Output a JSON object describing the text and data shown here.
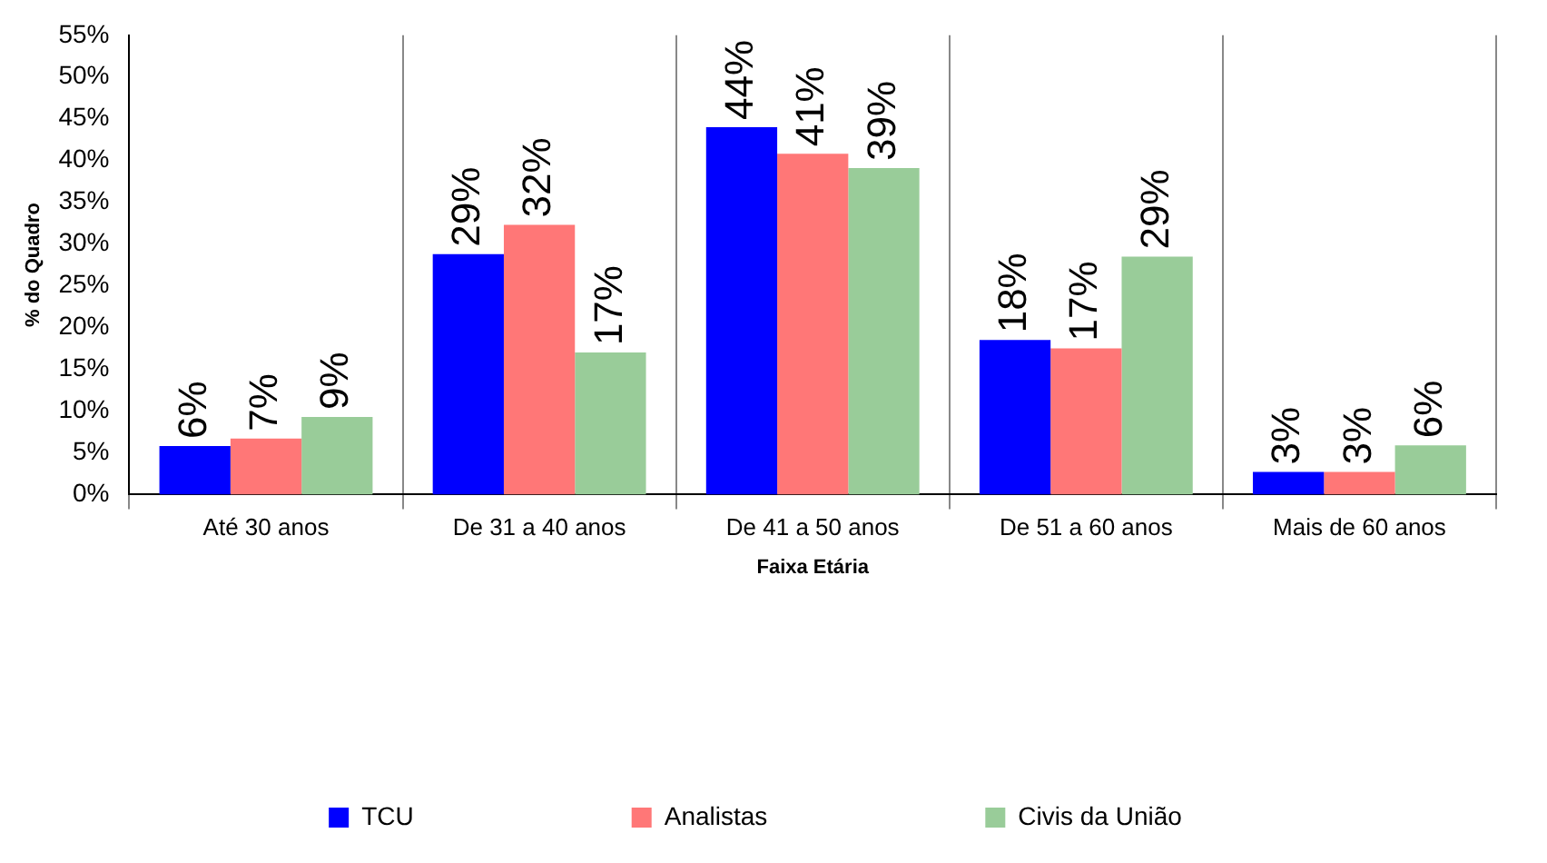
{
  "chart_data": {
    "type": "bar",
    "xlabel": "Faixa Etária",
    "ylabel": "% do Quadro",
    "categories": [
      "Até 30 anos",
      "De 31 a 40 anos",
      "De 41 a 50 anos",
      "De 51 a 60 anos",
      "Mais de 60 anos"
    ],
    "series": [
      {
        "name": "TCU",
        "color": "#0000ff",
        "values": [
          5.8,
          28.8,
          44.0,
          18.5,
          2.7
        ],
        "value_labels": [
          "6%",
          "29%",
          "44%",
          "18%",
          "3%"
        ]
      },
      {
        "name": "Analistas",
        "color": "#ff7777",
        "values": [
          6.7,
          32.3,
          40.8,
          17.5,
          2.7
        ],
        "value_labels": [
          "7%",
          "32%",
          "41%",
          "17%",
          "3%"
        ]
      },
      {
        "name": "Civis da União",
        "color": "#99cc99",
        "values": [
          9.3,
          17.0,
          39.1,
          28.5,
          5.9
        ],
        "value_labels": [
          "9%",
          "17%",
          "39%",
          "29%",
          "6%"
        ]
      }
    ],
    "ylim": [
      0,
      55
    ],
    "yticks": [
      {
        "value": 0,
        "label": "0%"
      },
      {
        "value": 5,
        "label": "5%"
      },
      {
        "value": 10,
        "label": "10%"
      },
      {
        "value": 15,
        "label": "15%"
      },
      {
        "value": 20,
        "label": "20%"
      },
      {
        "value": 25,
        "label": "25%"
      },
      {
        "value": 30,
        "label": "30%"
      },
      {
        "value": 35,
        "label": "35%"
      },
      {
        "value": 40,
        "label": "40%"
      },
      {
        "value": 45,
        "label": "45%"
      },
      {
        "value": 50,
        "label": "50%"
      },
      {
        "value": 55,
        "label": "55%"
      }
    ],
    "grid": "x",
    "legend": "bottom"
  }
}
